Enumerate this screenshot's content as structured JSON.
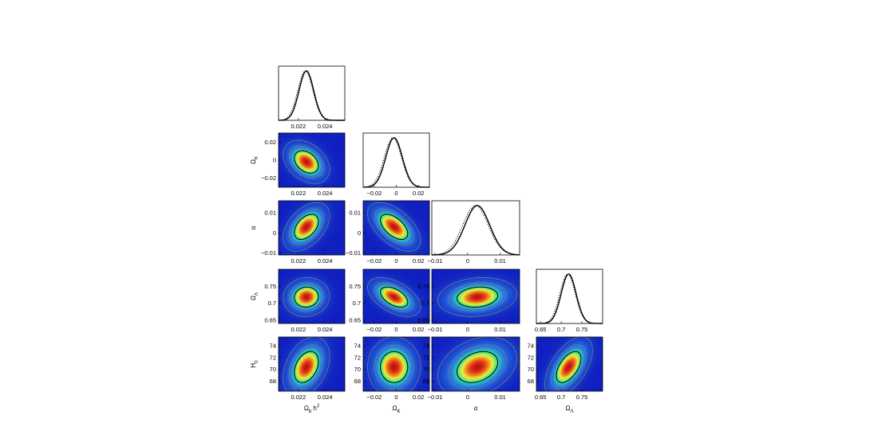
{
  "figure": {
    "parameters": [
      {
        "symbol": "Ω",
        "sub": "b",
        "suffix": " h",
        "sup": "2"
      },
      {
        "symbol": "Ω",
        "sub": "K",
        "suffix": "",
        "sup": ""
      },
      {
        "symbol": "α",
        "sub": "",
        "suffix": "",
        "sup": ""
      },
      {
        "symbol": "Ω",
        "sub": "Λ",
        "suffix": "",
        "sup": ""
      },
      {
        "symbol": "H",
        "sub": "0",
        "suffix": "",
        "sup": ""
      }
    ]
  },
  "chart_data": {
    "type": "triangle-plot",
    "description_visible": "1D marginalized posteriors on the diagonal (solid and dotted curves); 2D joint posteriors below diagonal shown as density maps with confidence contours",
    "colors": {
      "low": "#1020c0",
      "mid": "#30e0a0",
      "high": "#f0f030",
      "peak": "#c01010",
      "contour_inner": "#000000",
      "contour_outer": "#7a7a7a"
    },
    "params": [
      {
        "name": "Ω_b h^2",
        "range": [
          0.0205,
          0.0255
        ],
        "ticks": [
          "0.022",
          "0.024"
        ],
        "tick_values": [
          0.022,
          0.024
        ],
        "mean": 0.0226,
        "sigma": 0.00055
      },
      {
        "name": "Ω_K",
        "range": [
          -0.03,
          0.03
        ],
        "ticks": [
          "−0.02",
          "0",
          "0.02"
        ],
        "tick_values": [
          -0.02,
          0,
          0.02
        ],
        "mean": -0.002,
        "sigma": 0.0075
      },
      {
        "name": "α",
        "range": [
          -0.011,
          0.016
        ],
        "ticks": [
          "−0.01",
          "0",
          "0.01"
        ],
        "tick_values": [
          -0.01,
          0,
          0.01
        ],
        "mean": 0.003,
        "sigma": 0.0038
      },
      {
        "name": "Ω_Λ",
        "range": [
          0.64,
          0.8
        ],
        "ticks": [
          "0.65",
          "0.7",
          "0.75"
        ],
        "tick_values": [
          0.65,
          0.7,
          0.75
        ],
        "mean": 0.718,
        "sigma": 0.018
      },
      {
        "name": "H_0",
        "range": [
          66.3,
          75.5
        ],
        "ticks": [
          "68",
          "70",
          "72",
          "74"
        ],
        "tick_values": [
          68,
          70,
          72,
          74
        ],
        "mean": 70.4,
        "sigma": 1.6
      }
    ],
    "correlations": [
      [
        1,
        -0.35,
        0.45,
        0.05,
        0.35
      ],
      [
        -0.35,
        1,
        -0.55,
        -0.5,
        0.0
      ],
      [
        0.45,
        -0.55,
        1,
        0.15,
        0.3
      ],
      [
        0.05,
        -0.5,
        0.15,
        1,
        0.55
      ],
      [
        0.35,
        0.0,
        0.3,
        0.55,
        1
      ]
    ],
    "dotted_curve_shift_sigma": -0.15
  }
}
